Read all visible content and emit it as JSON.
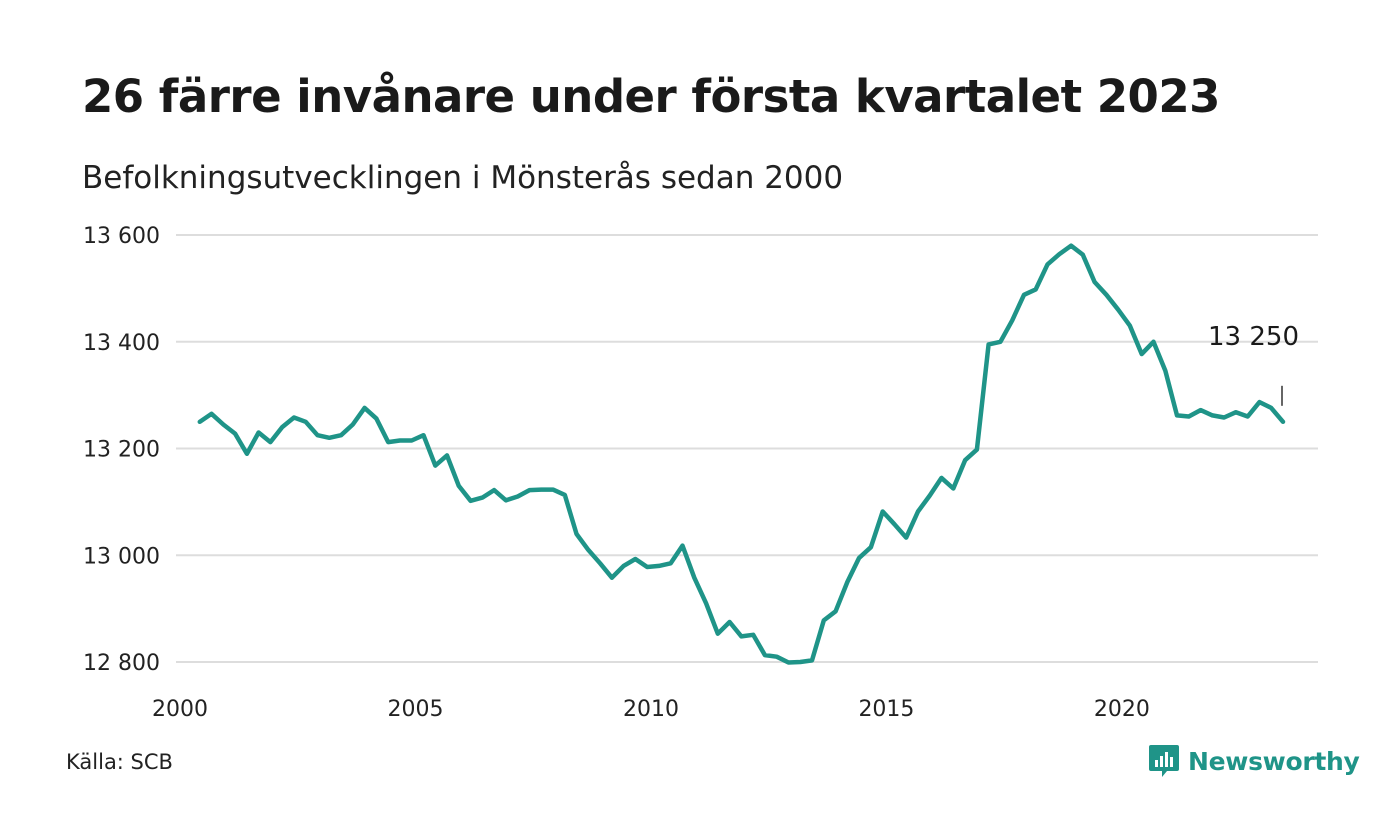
{
  "title": "26 färre invånare under första kvartalet 2023",
  "subtitle": "Befolkningsutvecklingen i Mönsterås sedan 2000",
  "source": "Källa: SCB",
  "brand": "Newsworthy",
  "colors": {
    "line": "#1f9488",
    "grid": "#dddddd",
    "brand": "#1f9488"
  },
  "chart_data": {
    "type": "line",
    "title": "26 färre invånare under första kvartalet 2023",
    "subtitle": "Befolkningsutvecklingen i Mönsterås sedan 2000",
    "xlabel": "",
    "ylabel": "",
    "xlim": [
      2000,
      2023.25
    ],
    "ylim": [
      12800,
      13600
    ],
    "grid": true,
    "x_ticks": [
      2000,
      2005,
      2010,
      2015,
      2020
    ],
    "x_tick_labels": [
      "2000",
      "2005",
      "2010",
      "2015",
      "2020"
    ],
    "y_ticks": [
      12800,
      13000,
      13200,
      13400,
      13600
    ],
    "y_tick_labels": [
      "12 800",
      "13 000",
      "13 200",
      "13 400",
      "13 600"
    ],
    "annotation": {
      "label": "13 250",
      "value": 13250
    },
    "series": [
      {
        "x": [
          2000.25,
          2000.5,
          2000.75,
          2001.0,
          2001.25,
          2001.5,
          2001.75,
          2002.0,
          2002.25,
          2002.5,
          2002.75,
          2003.0,
          2003.25,
          2003.5,
          2003.75,
          2004.0,
          2004.25,
          2004.5,
          2004.75,
          2005.0,
          2005.25,
          2005.5,
          2005.75,
          2006.0,
          2006.25,
          2006.5,
          2006.75,
          2007.0,
          2007.25,
          2007.5,
          2007.75,
          2008.0,
          2008.25,
          2008.5,
          2008.75,
          2009.0,
          2009.25,
          2009.5,
          2009.75,
          2010.0,
          2010.25,
          2010.5,
          2010.75,
          2011.0,
          2011.25,
          2011.5,
          2011.75,
          2012.0,
          2012.25,
          2012.5,
          2012.75,
          2013.0,
          2013.25,
          2013.5,
          2013.75,
          2014.0,
          2014.25,
          2014.5,
          2014.75,
          2015.0,
          2015.25,
          2015.5,
          2015.75,
          2016.0,
          2016.25,
          2016.5,
          2016.75,
          2017.0,
          2017.25,
          2017.5,
          2017.75,
          2018.0,
          2018.25,
          2018.5,
          2018.75,
          2019.0,
          2019.25,
          2019.5,
          2019.75,
          2020.0,
          2020.25,
          2020.5,
          2020.75,
          2021.0,
          2021.25,
          2021.5,
          2021.75,
          2022.0,
          2022.25,
          2022.5,
          2022.75,
          2023.0,
          2023.25
        ],
        "y": [
          13250,
          13265,
          13245,
          13228,
          13190,
          13230,
          13212,
          13240,
          13258,
          13250,
          13225,
          13220,
          13225,
          13245,
          13276,
          13256,
          13212,
          13215,
          13215,
          13225,
          13168,
          13187,
          13130,
          13102,
          13108,
          13122,
          13103,
          13110,
          13122,
          13123,
          13123,
          13113,
          13040,
          13010,
          12985,
          12958,
          12980,
          12993,
          12978,
          12980,
          12985,
          13018,
          12958,
          12910,
          12853,
          12875,
          12848,
          12851,
          12813,
          12810,
          12799,
          12800,
          12803,
          12878,
          12895,
          12950,
          12995,
          13015,
          13082,
          13058,
          13033,
          13082,
          13112,
          13145,
          13125,
          13178,
          13198,
          13395,
          13400,
          13440,
          13488,
          13498,
          13545,
          13564,
          13580,
          13563,
          13512,
          13488,
          13460,
          13430,
          13377,
          13400,
          13346,
          13262,
          13260,
          13272,
          13262,
          13258,
          13268,
          13260,
          13287,
          13276,
          13250
        ]
      }
    ]
  }
}
